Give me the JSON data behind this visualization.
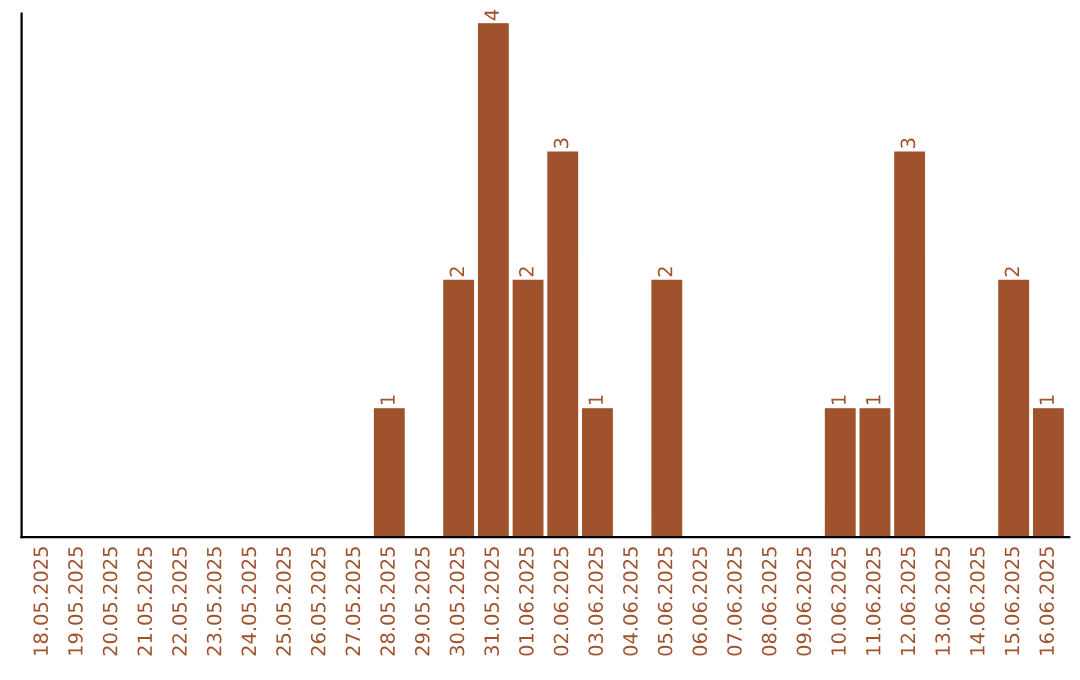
{
  "chart_data": {
    "type": "bar",
    "categories": [
      "18.05.2025",
      "19.05.2025",
      "20.05.2025",
      "21.05.2025",
      "22.05.2025",
      "23.05.2025",
      "24.05.2025",
      "25.05.2025",
      "26.05.2025",
      "27.05.2025",
      "28.05.2025",
      "29.05.2025",
      "30.05.2025",
      "31.05.2025",
      "01.06.2025",
      "02.06.2025",
      "03.06.2025",
      "04.06.2025",
      "05.06.2025",
      "06.06.2025",
      "07.06.2025",
      "08.06.2025",
      "09.06.2025",
      "10.06.2025",
      "11.06.2025",
      "12.06.2025",
      "13.06.2025",
      "14.06.2025",
      "15.06.2025",
      "16.06.2025"
    ],
    "values": [
      0,
      0,
      0,
      0,
      0,
      0,
      0,
      0,
      0,
      0,
      1,
      0,
      2,
      4,
      2,
      3,
      1,
      0,
      2,
      0,
      0,
      0,
      0,
      1,
      1,
      3,
      0,
      0,
      2,
      1
    ],
    "value_labels": [
      null,
      null,
      null,
      null,
      null,
      null,
      null,
      null,
      null,
      null,
      "1",
      null,
      "2",
      "4",
      "2",
      "3",
      "1",
      null,
      "2",
      null,
      null,
      null,
      null,
      "1",
      "1",
      "3",
      null,
      null,
      "2",
      "1"
    ],
    "color": "#a0522d",
    "grid": false,
    "legend": false,
    "tick_labels": "x"
  }
}
